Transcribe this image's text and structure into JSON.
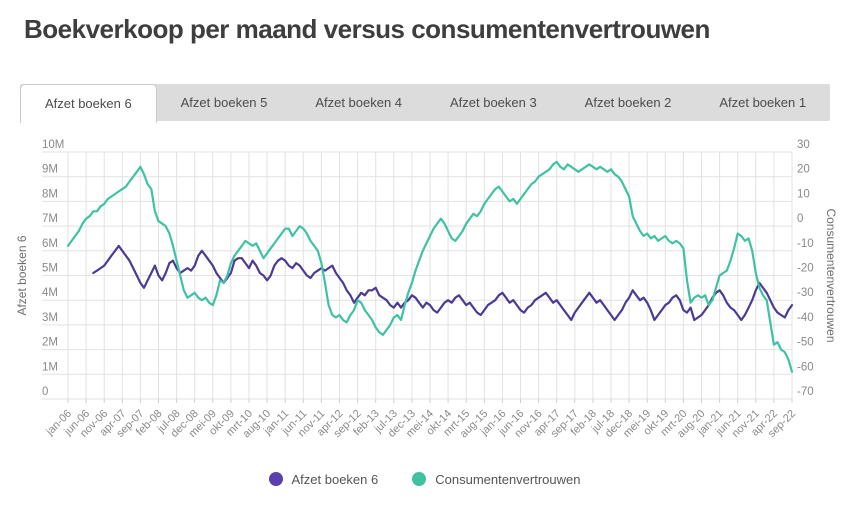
{
  "page": {
    "title": "Boekverkoop per maand versus consumentenvertrouwen"
  },
  "tabs": [
    {
      "label": "Afzet boeken 6",
      "active": true
    },
    {
      "label": "Afzet boeken 5",
      "active": false
    },
    {
      "label": "Afzet boeken 4",
      "active": false
    },
    {
      "label": "Afzet boeken 3",
      "active": false
    },
    {
      "label": "Afzet boeken 2",
      "active": false
    },
    {
      "label": "Afzet boeken 1",
      "active": false
    }
  ],
  "legend": [
    {
      "label": "Afzet boeken 6",
      "color": "#5b3fae"
    },
    {
      "label": "Consumentenvertrouwen",
      "color": "#3fc2a2"
    }
  ],
  "colors": {
    "purple_line": "#4c3a94",
    "teal_line": "#3fc2a2",
    "grid": "#e2e2e2",
    "tick_text": "#8a8a8a",
    "axis_title_text": "#6f6f6f",
    "tab_strip_bg": "#dcdcdd",
    "title_text": "#3e3e3e"
  },
  "chart_data": {
    "type": "line",
    "title": "Boekverkoop per maand versus consumentenvertrouwen",
    "x_start": "jan-06",
    "x_end": "sep-22",
    "n_points": 201,
    "x_unit": "maand",
    "grid": true,
    "legend_position": "bottom",
    "x_tick_labels": [
      "jan-06",
      "jun-06",
      "nov-06",
      "apr-07",
      "sep-07",
      "feb-08",
      "jul-08",
      "dec-08",
      "mei-09",
      "okt-09",
      "mrt-10",
      "aug-10",
      "jan-11",
      "jun-11",
      "nov-11",
      "apr-12",
      "sep-12",
      "feb-13",
      "jul-13",
      "dec-13",
      "mei-14",
      "okt-14",
      "mrt-15",
      "aug-15",
      "jan-16",
      "jun-16",
      "nov-16",
      "apr-17",
      "sep-17",
      "feb-18",
      "jul-18",
      "dec-18",
      "mei-19",
      "okt-19",
      "mrt-20",
      "aug-20",
      "jan-21",
      "jun-21",
      "nov-21",
      "apr-22",
      "sep-22"
    ],
    "y_left": {
      "label": "Afzet boeken 6",
      "min": 0,
      "max": 10000000,
      "tick_labels": [
        "0",
        "1M",
        "2M",
        "3M",
        "4M",
        "5M",
        "6M",
        "7M",
        "8M",
        "9M",
        "10M"
      ]
    },
    "y_right": {
      "label": "Consumentenvertrouwen",
      "min": -70,
      "max": 30,
      "tick_labels": [
        "-70",
        "-60",
        "-50",
        "-40",
        "-30",
        "-20",
        "-10",
        "0",
        "10",
        "20",
        "30"
      ]
    },
    "series": [
      {
        "name": "Afzet boeken 6",
        "axis": "left",
        "color": "#4c3a94",
        "unit": "miljoen stuks",
        "values_millions": [
          null,
          null,
          null,
          null,
          null,
          null,
          null,
          5.1,
          5.2,
          5.3,
          5.4,
          5.6,
          5.8,
          6.0,
          6.2,
          6.0,
          5.8,
          5.6,
          5.3,
          5.0,
          4.7,
          4.5,
          4.8,
          5.1,
          5.4,
          5.0,
          4.8,
          5.1,
          5.5,
          5.6,
          5.3,
          5.1,
          5.2,
          5.3,
          5.2,
          5.4,
          5.8,
          6.0,
          5.8,
          5.6,
          5.4,
          5.1,
          4.9,
          4.7,
          4.9,
          5.1,
          5.6,
          5.7,
          5.7,
          5.5,
          5.3,
          5.6,
          5.4,
          5.1,
          5.0,
          4.8,
          5.0,
          5.4,
          5.6,
          5.7,
          5.6,
          5.4,
          5.3,
          5.5,
          5.4,
          5.2,
          5.0,
          4.9,
          5.1,
          5.2,
          5.3,
          5.2,
          5.3,
          5.4,
          5.1,
          4.9,
          4.7,
          4.4,
          4.2,
          3.9,
          4.1,
          4.3,
          4.2,
          4.4,
          4.4,
          4.5,
          4.2,
          4.1,
          4.0,
          3.8,
          3.7,
          3.9,
          3.7,
          3.9,
          4.0,
          4.2,
          4.1,
          3.9,
          3.7,
          3.9,
          3.8,
          3.6,
          3.5,
          3.7,
          3.9,
          4.0,
          3.9,
          4.1,
          4.2,
          4.0,
          3.8,
          3.9,
          3.7,
          3.5,
          3.4,
          3.6,
          3.8,
          3.9,
          4.0,
          4.2,
          4.3,
          4.1,
          3.9,
          4.0,
          3.8,
          3.6,
          3.5,
          3.7,
          3.8,
          4.0,
          4.1,
          4.2,
          4.3,
          4.1,
          3.9,
          4.0,
          3.8,
          3.6,
          3.4,
          3.2,
          3.5,
          3.7,
          3.9,
          4.1,
          4.3,
          4.1,
          3.9,
          4.0,
          3.8,
          3.6,
          3.4,
          3.2,
          3.4,
          3.6,
          3.9,
          4.1,
          4.4,
          4.2,
          4.0,
          4.1,
          3.9,
          3.6,
          3.2,
          3.4,
          3.6,
          3.8,
          3.9,
          4.1,
          4.2,
          4.0,
          3.6,
          3.5,
          3.7,
          3.2,
          3.3,
          3.4,
          3.6,
          3.8,
          4.1,
          4.3,
          4.4,
          4.2,
          3.9,
          3.7,
          3.6,
          3.4,
          3.2,
          3.4,
          3.7,
          4.0,
          4.4,
          4.7,
          4.5,
          4.3,
          4.0,
          3.7,
          3.5,
          3.4,
          3.3,
          3.6,
          3.8
        ]
      },
      {
        "name": "Consumentenvertrouwen",
        "axis": "right",
        "color": "#3fc2a2",
        "unit": "saldo",
        "values": [
          -8,
          -6,
          -4,
          -2,
          1,
          3,
          4,
          6,
          6,
          8,
          9,
          11,
          12,
          13,
          14,
          15,
          16,
          18,
          20,
          22,
          24,
          21,
          17,
          15,
          6,
          2,
          1,
          0,
          -3,
          -8,
          -14,
          -20,
          -26,
          -29,
          -28,
          -27,
          -29,
          -30,
          -29,
          -31,
          -32,
          -28,
          -22,
          -23,
          -20,
          -15,
          -12,
          -10,
          -8,
          -6,
          -7,
          -8,
          -7,
          -10,
          -13,
          -11,
          -9,
          -7,
          -5,
          -3,
          -1,
          -1,
          -4,
          -2,
          0,
          -1,
          -3,
          -6,
          -8,
          -10,
          -15,
          -23,
          -32,
          -36,
          -37,
          -36,
          -38,
          -39,
          -36,
          -34,
          -30,
          -31,
          -34,
          -36,
          -38,
          -41,
          -43,
          -44,
          -42,
          -40,
          -37,
          -36,
          -38,
          -32,
          -27,
          -23,
          -18,
          -14,
          -10,
          -7,
          -4,
          -1,
          1,
          3,
          1,
          -2,
          -5,
          -6,
          -4,
          -2,
          1,
          3,
          5,
          4,
          6,
          9,
          11,
          13,
          15,
          16,
          14,
          12,
          10,
          11,
          9,
          11,
          13,
          15,
          17,
          18,
          20,
          21,
          22,
          23,
          25,
          26,
          24,
          23,
          25,
          24,
          23,
          22,
          23,
          24,
          25,
          24,
          23,
          24,
          23,
          22,
          23,
          21,
          20,
          18,
          15,
          12,
          4,
          1,
          -2,
          -4,
          -3,
          -5,
          -4,
          -6,
          -5,
          -4,
          -6,
          -7,
          -6,
          -7,
          -9,
          -22,
          -31,
          -29,
          -28,
          -29,
          -28,
          -32,
          -30,
          -25,
          -20,
          -19,
          -18,
          -14,
          -9,
          -3,
          -4,
          -6,
          -5,
          -10,
          -19,
          -25,
          -28,
          -30,
          -39,
          -48,
          -47,
          -50,
          -51,
          -54,
          -59
        ]
      }
    ]
  }
}
